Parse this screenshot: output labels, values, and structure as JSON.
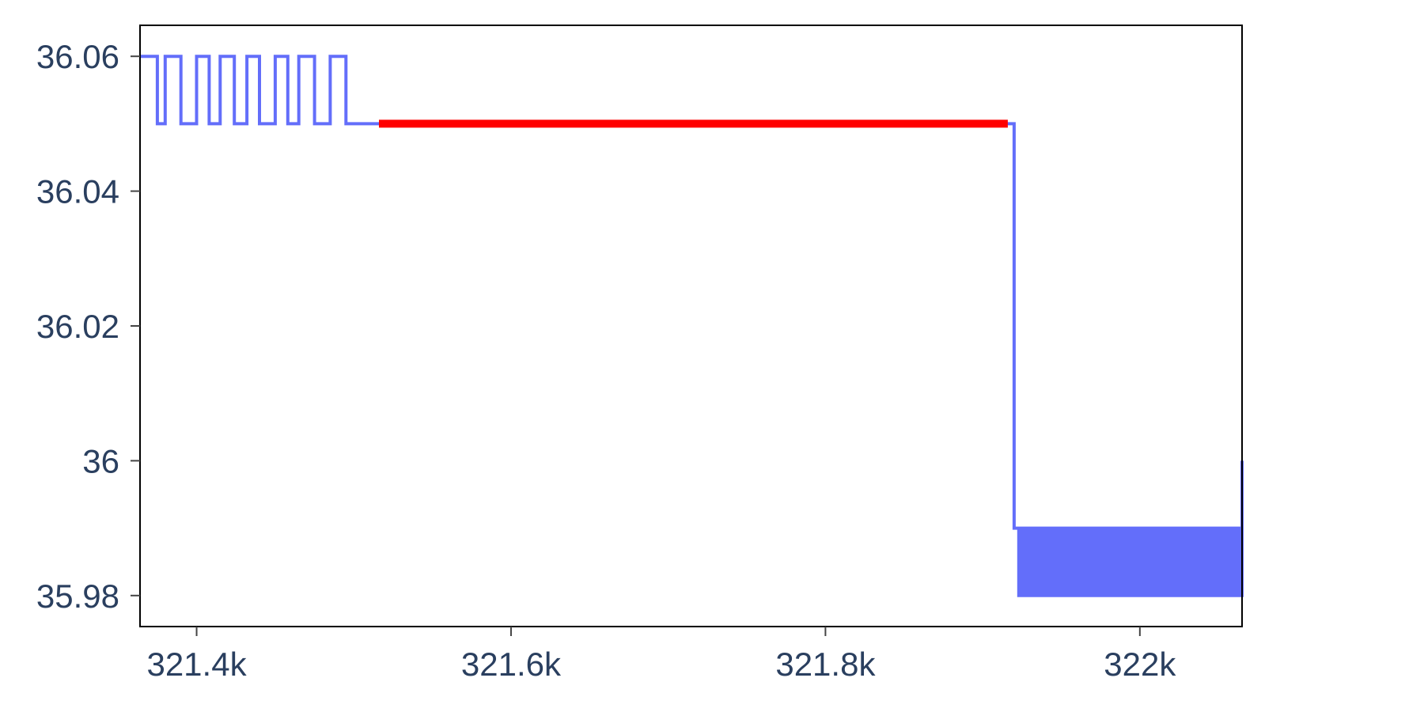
{
  "chart_data": {
    "type": "line",
    "title": "",
    "xlabel": "",
    "ylabel": "",
    "xlim": [
      321364,
      322065
    ],
    "ylim": [
      35.9754,
      36.0646
    ],
    "x_ticks": [
      {
        "value": 321400,
        "label": "321.4k"
      },
      {
        "value": 321600,
        "label": "321.6k"
      },
      {
        "value": 321800,
        "label": "321.8k"
      },
      {
        "value": 322000,
        "label": "322k"
      }
    ],
    "y_ticks": [
      {
        "value": 35.98,
        "label": "35.98"
      },
      {
        "value": 36.0,
        "label": "36"
      },
      {
        "value": 36.02,
        "label": "36.02"
      },
      {
        "value": 36.04,
        "label": "36.04"
      },
      {
        "value": 36.06,
        "label": "36.06"
      }
    ],
    "grid": false,
    "series": [
      {
        "color": "#636efa",
        "step": true,
        "x": [
          321364,
          321375,
          321380,
          321390,
          321400,
          321408,
          321415,
          321424,
          321432,
          321440,
          321450,
          321458,
          321465,
          321475,
          321485,
          321495,
          321504,
          321515,
          321920,
          321923,
          321925,
          321926,
          321928,
          321929,
          321931,
          321932,
          321934,
          321936,
          321938,
          321940,
          321942,
          321944,
          321946,
          321948,
          321950,
          321952,
          321954,
          321956,
          321958,
          321960,
          321962,
          321964,
          321966,
          321968,
          321970,
          321972,
          321974,
          321976,
          321978,
          321980,
          321982,
          321984,
          321986,
          321988,
          321990,
          321992,
          321994,
          321996,
          321998,
          322000,
          322002,
          322004,
          322006,
          322008,
          322010,
          322012,
          322014,
          322016,
          322018,
          322020,
          322022,
          322024,
          322026,
          322028,
          322030,
          322032,
          322034,
          322036,
          322038,
          322040,
          322042,
          322044,
          322046,
          322048,
          322050,
          322052,
          322054,
          322056,
          322058,
          322060,
          322062,
          322064,
          322065
        ],
        "y": [
          36.06,
          36.05,
          36.06,
          36.05,
          36.06,
          36.05,
          36.06,
          36.05,
          36.06,
          36.05,
          36.06,
          36.05,
          36.06,
          36.05,
          36.06,
          36.05,
          36.05,
          36.05,
          35.99,
          35.98,
          35.99,
          35.98,
          35.99,
          35.98,
          35.99,
          35.98,
          35.99,
          35.98,
          35.99,
          35.98,
          35.99,
          35.98,
          35.99,
          35.98,
          35.99,
          35.98,
          35.99,
          35.98,
          35.99,
          35.98,
          35.99,
          35.98,
          35.99,
          35.98,
          35.99,
          35.98,
          35.99,
          35.98,
          35.99,
          35.98,
          35.99,
          35.98,
          35.99,
          35.98,
          35.99,
          35.98,
          35.99,
          35.98,
          35.99,
          35.98,
          35.99,
          35.98,
          35.99,
          35.98,
          35.99,
          35.98,
          35.99,
          35.98,
          35.99,
          35.98,
          35.99,
          35.98,
          35.99,
          35.98,
          35.99,
          35.98,
          35.99,
          35.98,
          35.99,
          35.98,
          35.99,
          35.98,
          35.99,
          35.98,
          35.99,
          35.98,
          35.99,
          35.98,
          35.99,
          35.98,
          35.99,
          35.98,
          36.0
        ]
      },
      {
        "color": "#ff0000",
        "step": false,
        "x": [
          321516,
          321916
        ],
        "y": [
          36.05,
          36.05
        ]
      }
    ]
  }
}
